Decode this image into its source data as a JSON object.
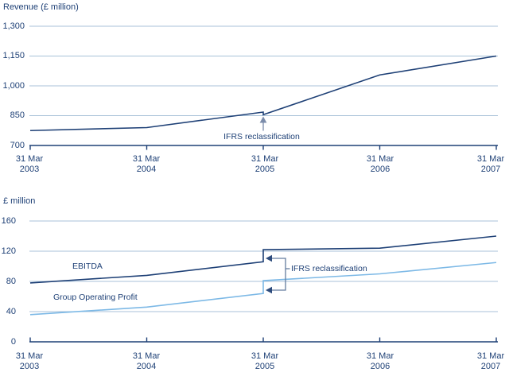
{
  "colors": {
    "navy": "#1e4076",
    "light_blue": "#7db9e6",
    "gridline": "#a8c2d8",
    "bracket": "#647c9f",
    "bracket_arrowhead": "#2e4c7d",
    "up_arrow": "#7b8cab",
    "background": "#ffffff"
  },
  "chart_data": [
    {
      "type": "line",
      "title": "Revenue (£ million)",
      "ylabel": "Revenue (£ million)",
      "ylim": [
        700,
        1300
      ],
      "grid": true,
      "y_tick_values": [
        700,
        850,
        1000,
        1150,
        1300
      ],
      "y_tick_labels": [
        "1,300",
        "1,150",
        "1,000",
        "850",
        "700"
      ],
      "x_tick_labels": [
        [
          "31 Mar",
          "2003"
        ],
        [
          "31 Mar",
          "2004"
        ],
        [
          "31 Mar",
          "2005"
        ],
        [
          "31 Mar",
          "2006"
        ],
        [
          "31 Mar",
          "2007"
        ]
      ],
      "annotation": "IFRS reclassification",
      "annotation_note": "vertical step down in line at 31 Mar 2005, marked with upward arrow",
      "series": [
        {
          "name": "Revenue",
          "color": "navy",
          "x": [
            "31 Mar 2003",
            "31 Mar 2004",
            "31 Mar 2005 (pre-reclass)",
            "31 Mar 2005 (post-reclass)",
            "31 Mar 2006",
            "31 Mar 2007"
          ],
          "values": [
            775,
            790,
            868,
            855,
            1055,
            1150
          ],
          "step_at_x_index": 2
        }
      ]
    },
    {
      "type": "line",
      "title": "£ million",
      "ylabel": "£ million",
      "ylim": [
        0,
        160
      ],
      "grid": true,
      "y_tick_values": [
        0,
        40,
        80,
        120,
        160
      ],
      "y_tick_labels": [
        "160",
        "120",
        "80",
        "40",
        "0"
      ],
      "x_tick_labels": [
        [
          "31 Mar",
          "2003"
        ],
        [
          "31 Mar",
          "2004"
        ],
        [
          "31 Mar",
          "2005"
        ],
        [
          "31 Mar",
          "2006"
        ],
        [
          "31 Mar",
          "2007"
        ]
      ],
      "annotation": "IFRS reclassification",
      "annotation_note": "bracket with two left arrows pointing at the upward steps of both lines at 31 Mar 2005",
      "series": [
        {
          "name": "EBITDA",
          "color": "navy",
          "x": [
            "31 Mar 2003",
            "31 Mar 2004",
            "31 Mar 2005 (pre-reclass)",
            "31 Mar 2005 (post-reclass)",
            "31 Mar 2006",
            "31 Mar 2007"
          ],
          "values": [
            78,
            88,
            106,
            122,
            124,
            140
          ],
          "step_at_x_index": 2
        },
        {
          "name": "Group Operating Profit",
          "color": "light_blue",
          "x": [
            "31 Mar 2003",
            "31 Mar 2004",
            "31 Mar 2005 (pre-reclass)",
            "31 Mar 2005 (post-reclass)",
            "31 Mar 2006",
            "31 Mar 2007"
          ],
          "values": [
            36,
            46,
            64,
            81,
            90,
            105
          ],
          "step_at_x_index": 2
        }
      ]
    }
  ]
}
